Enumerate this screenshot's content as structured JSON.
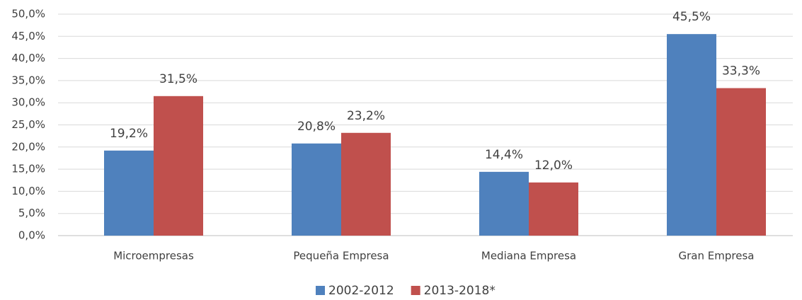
{
  "chart_data": {
    "type": "bar",
    "categories": [
      "Microempresas",
      "Pequeña Empresa",
      "Mediana Empresa",
      "Gran Empresa"
    ],
    "series": [
      {
        "name": "2002-2012",
        "color": "#4f81bd",
        "values": [
          19.2,
          20.8,
          14.4,
          45.5
        ],
        "value_labels": [
          "19,2%",
          "20,8%",
          "14,4%",
          "45,5%"
        ]
      },
      {
        "name": "2013-2018*",
        "color": "#c0504d",
        "values": [
          31.5,
          23.2,
          12.0,
          33.3
        ],
        "value_labels": [
          "31,5%",
          "23,2%",
          "12,0%",
          "33,3%"
        ]
      }
    ],
    "ylim": [
      0,
      50
    ],
    "yticks": [
      {
        "value": 0,
        "label": "0,0%"
      },
      {
        "value": 5,
        "label": "5,0%"
      },
      {
        "value": 10,
        "label": "10,0%"
      },
      {
        "value": 15,
        "label": "15,0%"
      },
      {
        "value": 20,
        "label": "20,0%"
      },
      {
        "value": 25,
        "label": "25,0%"
      },
      {
        "value": 30,
        "label": "30,0%"
      },
      {
        "value": 35,
        "label": "35,0%"
      },
      {
        "value": 40,
        "label": "40,0%"
      },
      {
        "value": 45,
        "label": "45,0%"
      },
      {
        "value": 50,
        "label": "50,0%"
      }
    ],
    "grid": true,
    "legend": "bottom"
  }
}
